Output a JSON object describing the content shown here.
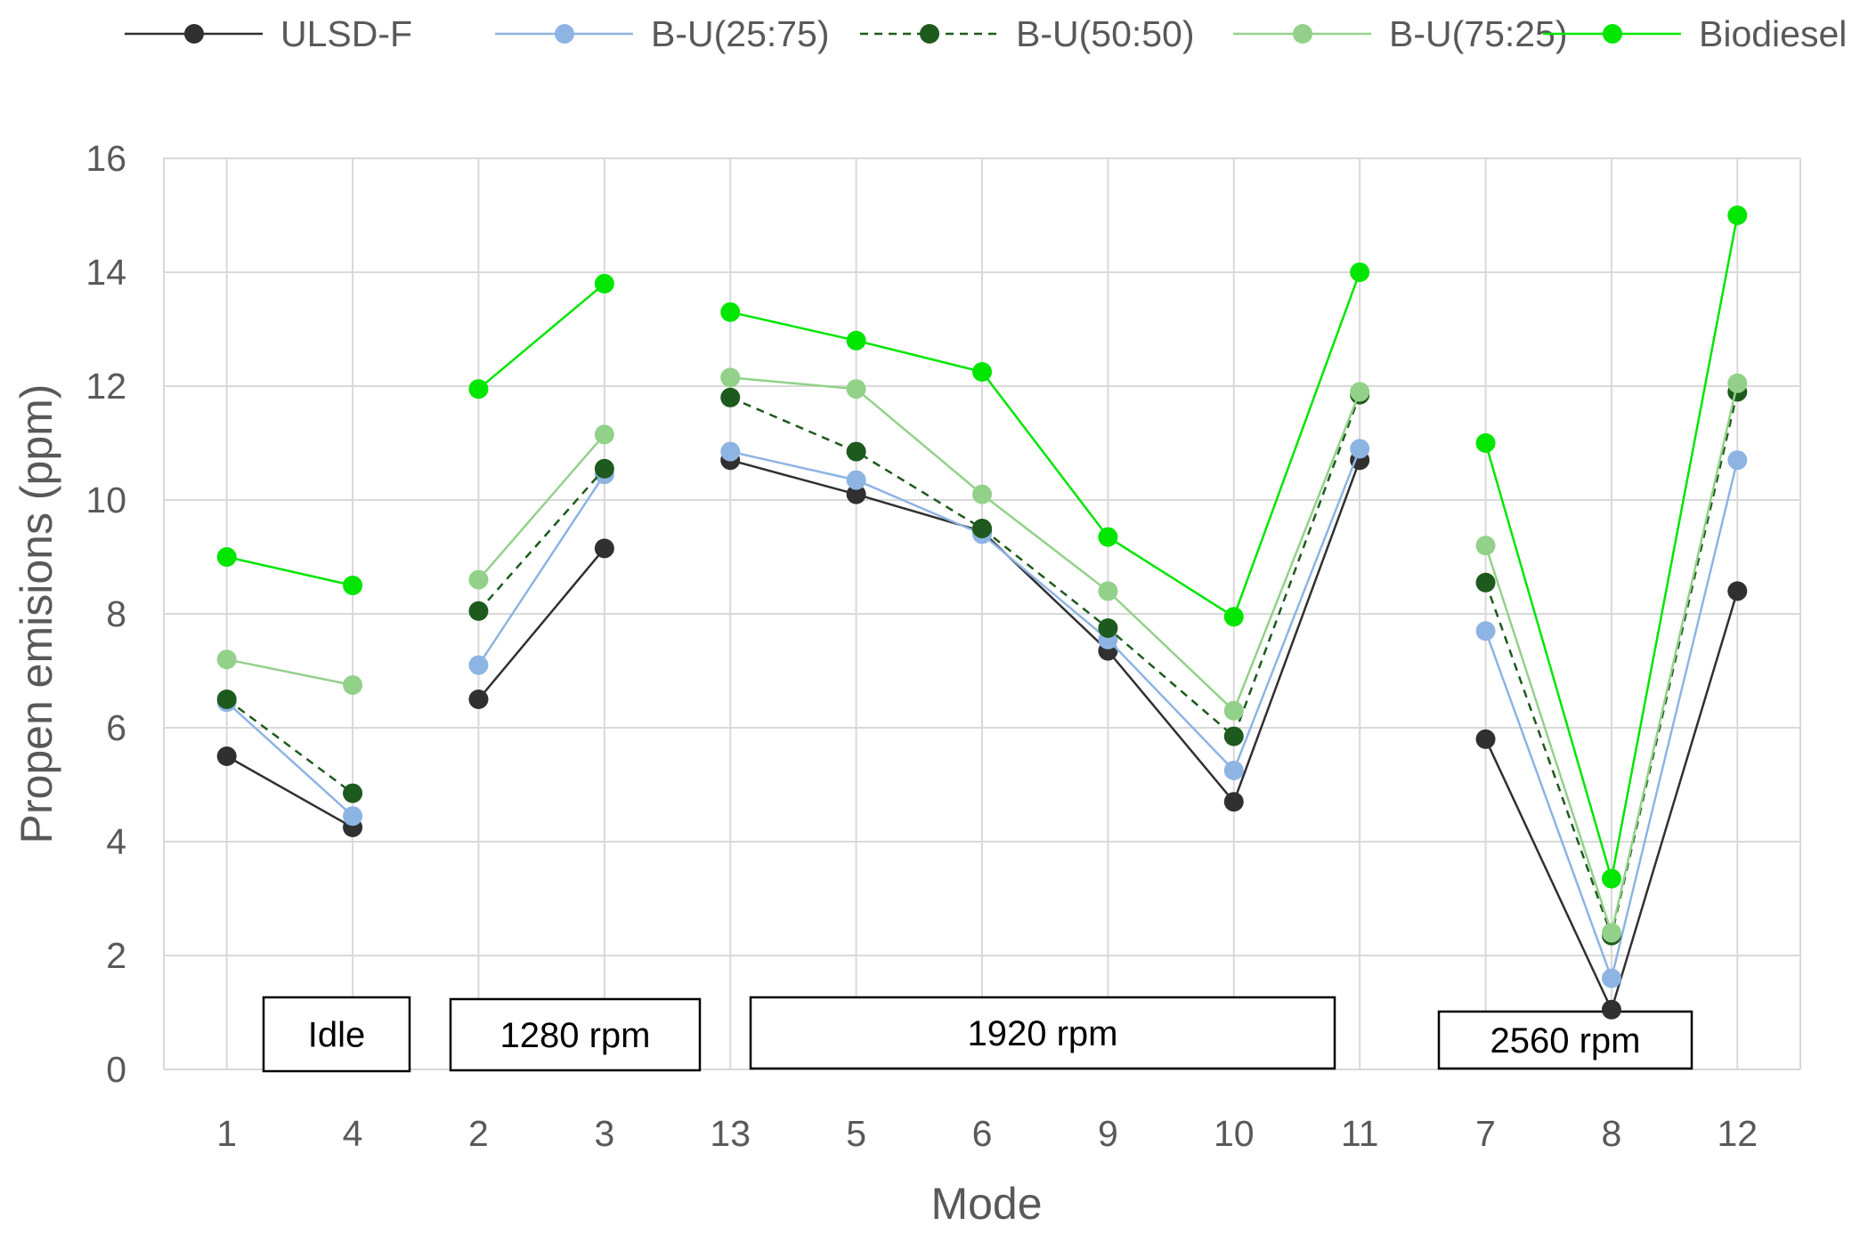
{
  "chart_data": {
    "type": "line",
    "xlabel": "Mode",
    "ylabel": "Propen emisions (ppm)",
    "ylim": [
      0,
      16
    ],
    "yticks": [
      0,
      2,
      4,
      6,
      8,
      10,
      12,
      14,
      16
    ],
    "categories": [
      "1",
      "4",
      "2",
      "3",
      "13",
      "5",
      "6",
      "9",
      "10",
      "11",
      "7",
      "8",
      "12"
    ],
    "grid": true,
    "legend_position": "top",
    "segments": [
      [
        0,
        1
      ],
      [
        2,
        3
      ],
      [
        4,
        9
      ],
      [
        10,
        12
      ]
    ],
    "groups": [
      {
        "label": "Idle",
        "from": 0,
        "to": 1
      },
      {
        "label": "1280 rpm",
        "from": 2,
        "to": 3
      },
      {
        "label": "1920 rpm",
        "from": 4,
        "to": 9
      },
      {
        "label": "2560 rpm",
        "from": 10,
        "to": 12
      }
    ],
    "series": [
      {
        "name": "ULSD-F",
        "color": "#303030",
        "dashed": false,
        "values": [
          5.5,
          4.25,
          6.5,
          9.15,
          10.7,
          10.1,
          9.45,
          7.35,
          4.7,
          10.7,
          5.8,
          1.05,
          8.4
        ]
      },
      {
        "name": "B-U(25:75)",
        "color": "#8eb4e3",
        "dashed": false,
        "values": [
          6.45,
          4.45,
          7.1,
          10.45,
          10.85,
          10.35,
          9.4,
          7.55,
          5.25,
          10.9,
          7.7,
          1.6,
          10.7
        ]
      },
      {
        "name": "B-U(50:50)",
        "color": "#1e5a1e",
        "dashed": true,
        "values": [
          6.5,
          4.85,
          8.05,
          10.55,
          11.8,
          10.85,
          9.5,
          7.75,
          5.85,
          11.85,
          8.55,
          2.35,
          11.9
        ]
      },
      {
        "name": "B-U(75:25)",
        "color": "#93d18a",
        "dashed": false,
        "values": [
          7.2,
          6.75,
          8.6,
          11.15,
          12.15,
          11.95,
          10.1,
          8.4,
          6.3,
          11.9,
          9.2,
          2.4,
          12.05
        ]
      },
      {
        "name": "Biodiesel",
        "color": "#00e600",
        "dashed": false,
        "values": [
          9.0,
          8.5,
          11.95,
          13.8,
          13.3,
          12.8,
          12.25,
          9.35,
          7.95,
          14.0,
          11.0,
          3.35,
          15.0
        ]
      }
    ]
  }
}
